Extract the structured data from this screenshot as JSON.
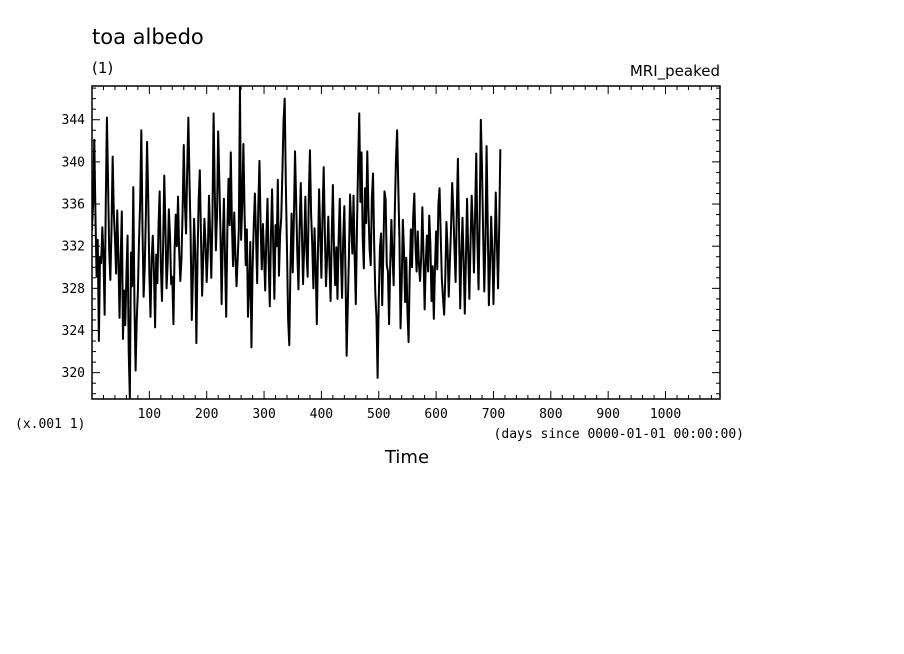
{
  "chart_data": {
    "type": "line",
    "title": "toa albedo",
    "units": "(1)",
    "model": "MRI_peaked",
    "ylabel_scale": "(x.001 1)",
    "xlabel": "Time",
    "xlabel_units": "(days since 0000-01-01 00:00:00)",
    "xlim": [
      0,
      1095
    ],
    "ylim": [
      317.5,
      347.2
    ],
    "xticks": [
      100,
      200,
      300,
      400,
      500,
      600,
      700,
      800,
      900,
      1000
    ],
    "yticks": [
      320,
      324,
      328,
      332,
      336,
      340,
      344
    ],
    "grid": false,
    "series": [
      {
        "sampling_days": 2,
        "x_start": 0,
        "values": [
          333.5,
          336.2,
          342.1,
          335.0,
          329.1,
          332.6,
          323.0,
          331.0,
          330.4,
          333.8,
          331.2,
          325.5,
          336.0,
          344.2,
          338.0,
          331.5,
          328.8,
          333.6,
          340.5,
          335.2,
          332.8,
          329.4,
          335.4,
          331.0,
          325.2,
          330.8,
          335.3,
          323.2,
          327.8,
          324.5,
          329.2,
          333.0,
          322.0,
          317.6,
          331.4,
          328.2,
          337.6,
          326.5,
          320.2,
          325.0,
          327.7,
          332.6,
          336.3,
          343.0,
          333.8,
          327.2,
          330.1,
          335.1,
          341.9,
          336.7,
          329.4,
          325.3,
          330.8,
          333.0,
          329.6,
          324.3,
          331.2,
          328.5,
          334.0,
          337.2,
          330.2,
          326.8,
          332.0,
          338.7,
          333.9,
          328.0,
          330.5,
          335.5,
          333.0,
          328.4,
          329.1,
          324.6,
          331.6,
          335.0,
          332.0,
          336.7,
          331.5,
          328.7,
          330.8,
          335.4,
          341.6,
          336.0,
          333.2,
          339.3,
          344.2,
          338.2,
          333.0,
          325.0,
          329.3,
          334.6,
          331.4,
          322.8,
          331.0,
          336.4,
          339.2,
          333.0,
          327.3,
          330.9,
          334.6,
          332.2,
          328.6,
          331.5,
          336.8,
          333.1,
          329.0,
          334.6,
          344.6,
          337.4,
          331.6,
          335.0,
          342.9,
          338.2,
          333.3,
          326.5,
          332.5,
          336.5,
          330.4,
          325.3,
          333.5,
          338.4,
          334.0,
          340.9,
          334.0,
          330.1,
          335.2,
          331.2,
          328.2,
          330.8,
          333.6,
          347.1,
          332.6,
          336.0,
          341.7,
          335.2,
          330.2,
          333.6,
          325.3,
          328.1,
          332.4,
          322.4,
          329.9,
          333.9,
          337.0,
          333.0,
          328.5,
          335.9,
          340.1,
          333.9,
          329.8,
          334.1,
          331.1,
          327.8,
          332.9,
          336.5,
          330.6,
          326.3,
          333.0,
          337.4,
          331.9,
          327.0,
          334.0,
          332.0,
          338.3,
          329.2,
          333.1,
          334.7,
          339.1,
          343.9,
          346.0,
          337.8,
          331.6,
          325.0,
          322.6,
          330.0,
          335.1,
          329.5,
          334.6,
          341.0,
          336.2,
          331.3,
          327.9,
          333.7,
          338.0,
          333.3,
          328.4,
          332.0,
          336.7,
          331.5,
          329.1,
          336.6,
          341.1,
          335.1,
          332.2,
          328.0,
          333.7,
          330.1,
          324.6,
          331.5,
          337.4,
          332.9,
          329.0,
          335.1,
          339.5,
          333.3,
          328.2,
          331.0,
          334.8,
          330.4,
          326.8,
          333.0,
          337.8,
          331.6,
          328.3,
          331.9,
          327.0,
          332.6,
          336.5,
          330.9,
          327.1,
          332.7,
          335.8,
          329.5,
          321.6,
          326.4,
          331.1,
          336.9,
          334.0,
          331.3,
          336.8,
          330.9,
          326.5,
          333.7,
          339.8,
          344.6,
          336.2,
          340.9,
          332.8,
          329.9,
          337.5,
          334.2,
          341.0,
          335.5,
          331.7,
          330.2,
          336.6,
          338.9,
          332.2,
          327.5,
          325.3,
          319.5,
          327.0,
          331.8,
          333.2,
          326.4,
          331.6,
          337.2,
          336.4,
          330.2,
          329.6,
          324.6,
          330.3,
          334.5,
          331.0,
          328.3,
          335.3,
          340.2,
          343.0,
          337.8,
          332.8,
          324.2,
          328.5,
          334.5,
          331.5,
          326.7,
          330.9,
          325.8,
          322.9,
          329.5,
          333.6,
          330.0,
          334.8,
          337.0,
          332.2,
          329.6,
          333.4,
          330.3,
          328.7,
          331.0,
          335.7,
          331.1,
          326.0,
          330.5,
          333.0,
          329.6,
          334.9,
          332.2,
          326.8,
          330.1,
          325.1,
          329.9,
          333.4,
          329.8,
          336.0,
          337.5,
          333.1,
          328.9,
          327.1,
          325.5,
          329.0,
          334.3,
          331.8,
          327.2,
          330.5,
          333.7,
          338.0,
          335.4,
          331.8,
          328.6,
          335.2,
          340.3,
          333.6,
          326.1,
          330.9,
          334.7,
          330.6,
          325.6,
          330.8,
          336.5,
          331.4,
          327.0,
          332.2,
          336.8,
          333.8,
          329.5,
          335.0,
          340.8,
          332.5,
          327.9,
          335.0,
          344.0,
          339.5,
          333.2,
          327.7,
          332.5,
          341.5,
          334.0,
          326.4,
          330.2,
          334.8,
          331.6,
          326.5,
          331.5,
          337.1,
          332.3,
          328.0,
          333.8,
          341.2
        ]
      }
    ]
  }
}
